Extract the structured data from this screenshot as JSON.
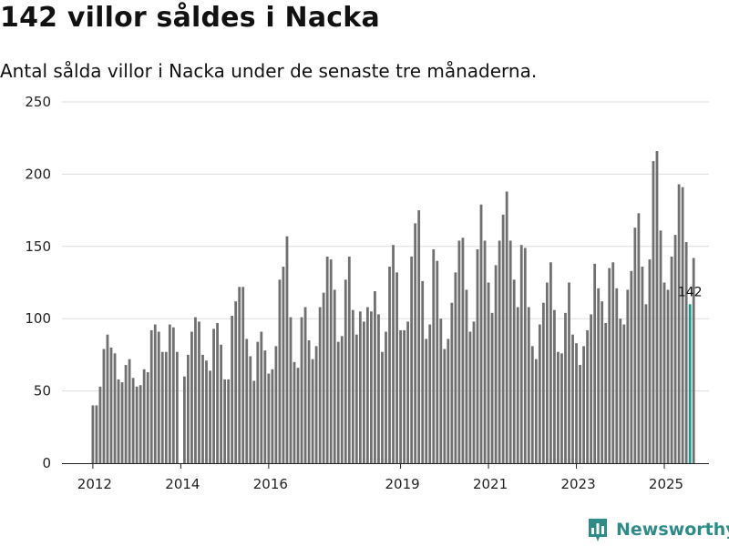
{
  "header": {
    "title": "142 villor såldes i Nacka",
    "subtitle": "Antal sålda villor i Nacka under de senaste tre månaderna."
  },
  "brand": {
    "name": "Newsworthy"
  },
  "colors": {
    "bar": "#707070",
    "highlight": "#199b8c",
    "grid": "#dddddd",
    "brand": "#2e8b88"
  },
  "chart_data": {
    "type": "bar",
    "title": "142 villor såldes i Nacka",
    "subtitle": "Antal sålda villor i Nacka under de senaste tre månaderna.",
    "xlabel": "",
    "ylabel": "",
    "ylim": [
      0,
      250
    ],
    "yticks": [
      "0",
      "50",
      "100",
      "150",
      "200",
      "250"
    ],
    "xticks": [
      {
        "label": "2012",
        "index": 0
      },
      {
        "label": "2014",
        "index": 24
      },
      {
        "label": "2016",
        "index": 48
      },
      {
        "label": "2019",
        "index": 84
      },
      {
        "label": "2021",
        "index": 108
      },
      {
        "label": "2023",
        "index": 132
      },
      {
        "label": "2025",
        "index": 156
      }
    ],
    "grid": true,
    "highlight": {
      "index": 163,
      "label": "142"
    },
    "values": [
      40,
      40,
      53,
      79,
      89,
      80,
      76,
      58,
      56,
      68,
      72,
      59,
      53,
      54,
      65,
      63,
      92,
      96,
      91,
      77,
      77,
      96,
      94,
      77,
      0,
      60,
      75,
      91,
      101,
      98,
      75,
      71,
      64,
      93,
      97,
      82,
      58,
      58,
      102,
      112,
      122,
      122,
      86,
      74,
      57,
      84,
      91,
      78,
      62,
      65,
      81,
      127,
      136,
      157,
      101,
      70,
      66,
      101,
      108,
      85,
      72,
      81,
      108,
      118,
      143,
      141,
      120,
      84,
      88,
      127,
      143,
      106,
      89,
      105,
      98,
      108,
      105,
      119,
      103,
      77,
      91,
      136,
      151,
      132,
      92,
      92,
      98,
      143,
      166,
      175,
      126,
      86,
      96,
      148,
      140,
      100,
      79,
      86,
      111,
      132,
      154,
      156,
      120,
      91,
      98,
      148,
      179,
      154,
      125,
      104,
      137,
      154,
      172,
      188,
      154,
      127,
      108,
      151,
      149,
      108,
      81,
      72,
      96,
      111,
      125,
      139,
      106,
      77,
      76,
      104,
      125,
      89,
      83,
      68,
      81,
      92,
      103,
      138,
      121,
      112,
      97,
      135,
      139,
      121,
      100,
      96,
      120,
      133,
      163,
      173,
      136,
      110,
      141,
      209,
      216,
      161,
      125,
      120,
      143,
      158,
      193,
      191,
      153,
      110,
      142
    ]
  }
}
